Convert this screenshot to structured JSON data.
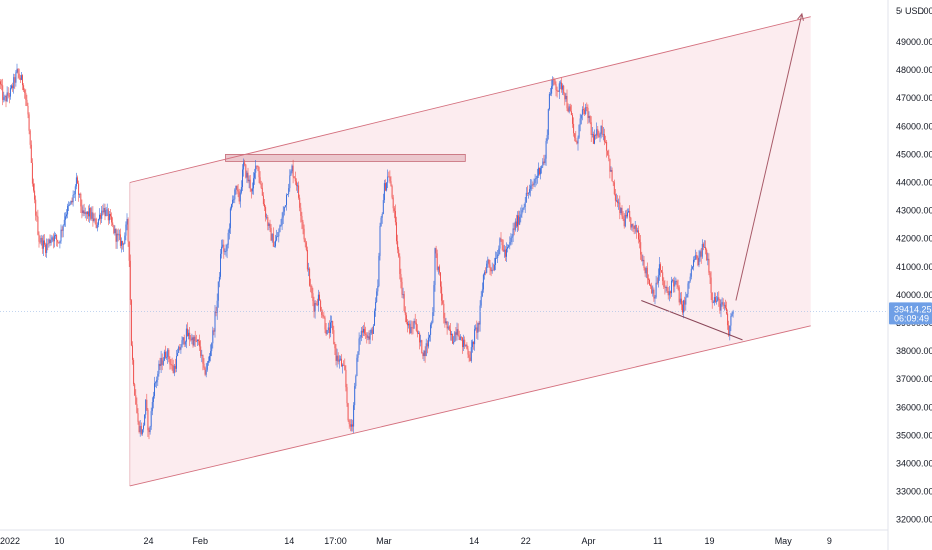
{
  "chart_data": {
    "type": "candlestick",
    "currency": "USD",
    "y_axis": {
      "min": 31500,
      "max": 50300,
      "ticks": [
        32000,
        33000,
        34000,
        35000,
        36000,
        37000,
        38000,
        39000,
        40000,
        41000,
        42000,
        43000,
        44000,
        45000,
        46000,
        47000,
        48000,
        49000
      ],
      "tick_labels": [
        "32000.00",
        "33000.00",
        "34000.00",
        "35000.00",
        "36000.00",
        "37000.00",
        "38000.00",
        "39000.00",
        "40000.00",
        "41000.00",
        "42000.00",
        "43000.00",
        "44000.00",
        "45000.00",
        "46000.00",
        "47000.00",
        "48000.00",
        "49000.00"
      ],
      "top_label": "50000.00"
    },
    "x_axis": {
      "note": "x in bar index (4-hour bars from start of chart)",
      "ticks": [
        {
          "x": 0,
          "label": "2022"
        },
        {
          "x": 54,
          "label": "10"
        },
        {
          "x": 135,
          "label": "24"
        },
        {
          "x": 182,
          "label": "Feb"
        },
        {
          "x": 263,
          "label": "14"
        },
        {
          "x": 305,
          "label": "17:00"
        },
        {
          "x": 349,
          "label": "Mar"
        },
        {
          "x": 431,
          "label": "14"
        },
        {
          "x": 478,
          "label": "22"
        },
        {
          "x": 535,
          "label": "Apr"
        },
        {
          "x": 598,
          "label": "11"
        },
        {
          "x": 645,
          "label": "19"
        },
        {
          "x": 712,
          "label": "May"
        },
        {
          "x": 754,
          "label": "9"
        }
      ]
    },
    "current_price": {
      "label": "39414.25",
      "countdown": "06:09:49",
      "value": 39414.25
    },
    "path": [
      [
        0,
        47600
      ],
      [
        4,
        46900
      ],
      [
        10,
        47200
      ],
      [
        16,
        47900
      ],
      [
        22,
        47500
      ],
      [
        26,
        46400
      ],
      [
        30,
        43900
      ],
      [
        36,
        42000
      ],
      [
        42,
        41700
      ],
      [
        48,
        42100
      ],
      [
        54,
        41900
      ],
      [
        60,
        42900
      ],
      [
        66,
        43300
      ],
      [
        70,
        44000
      ],
      [
        76,
        42800
      ],
      [
        82,
        42900
      ],
      [
        88,
        42500
      ],
      [
        94,
        43100
      ],
      [
        100,
        42700
      ],
      [
        106,
        42100
      ],
      [
        112,
        41800
      ],
      [
        116,
        42500
      ],
      [
        118,
        41400
      ],
      [
        120,
        38300
      ],
      [
        122,
        37000
      ],
      [
        126,
        35400
      ],
      [
        130,
        35100
      ],
      [
        133,
        36100
      ],
      [
        136,
        35000
      ],
      [
        140,
        36600
      ],
      [
        146,
        37500
      ],
      [
        152,
        38000
      ],
      [
        158,
        37300
      ],
      [
        164,
        38100
      ],
      [
        170,
        38600
      ],
      [
        176,
        38400
      ],
      [
        182,
        38200
      ],
      [
        186,
        37200
      ],
      [
        190,
        37600
      ],
      [
        194,
        38600
      ],
      [
        198,
        39800
      ],
      [
        202,
        41800
      ],
      [
        206,
        41400
      ],
      [
        210,
        42900
      ],
      [
        214,
        43800
      ],
      [
        218,
        43400
      ],
      [
        222,
        44600
      ],
      [
        226,
        44100
      ],
      [
        230,
        43700
      ],
      [
        234,
        44800
      ],
      [
        238,
        43800
      ],
      [
        242,
        42900
      ],
      [
        246,
        42200
      ],
      [
        250,
        41800
      ],
      [
        254,
        42200
      ],
      [
        258,
        42900
      ],
      [
        262,
        43800
      ],
      [
        266,
        44500
      ],
      [
        270,
        44000
      ],
      [
        274,
        43000
      ],
      [
        278,
        41800
      ],
      [
        282,
        40400
      ],
      [
        286,
        39600
      ],
      [
        290,
        39900
      ],
      [
        294,
        39300
      ],
      [
        298,
        38600
      ],
      [
        302,
        38900
      ],
      [
        306,
        37800
      ],
      [
        310,
        37600
      ],
      [
        314,
        37200
      ],
      [
        318,
        35200
      ],
      [
        321,
        35500
      ],
      [
        324,
        37300
      ],
      [
        328,
        38600
      ],
      [
        332,
        38800
      ],
      [
        336,
        38400
      ],
      [
        340,
        38900
      ],
      [
        344,
        40300
      ],
      [
        346,
        42300
      ],
      [
        350,
        43800
      ],
      [
        354,
        44300
      ],
      [
        358,
        43200
      ],
      [
        362,
        41600
      ],
      [
        366,
        40200
      ],
      [
        370,
        39000
      ],
      [
        374,
        38700
      ],
      [
        378,
        39100
      ],
      [
        382,
        38300
      ],
      [
        386,
        37900
      ],
      [
        390,
        38400
      ],
      [
        394,
        39400
      ],
      [
        396,
        41600
      ],
      [
        400,
        40600
      ],
      [
        404,
        39200
      ],
      [
        408,
        38700
      ],
      [
        412,
        38400
      ],
      [
        416,
        38900
      ],
      [
        420,
        38300
      ],
      [
        424,
        38200
      ],
      [
        428,
        37800
      ],
      [
        432,
        38600
      ],
      [
        436,
        39000
      ],
      [
        440,
        40700
      ],
      [
        444,
        41200
      ],
      [
        448,
        40900
      ],
      [
        452,
        41500
      ],
      [
        456,
        41900
      ],
      [
        460,
        41400
      ],
      [
        464,
        41800
      ],
      [
        468,
        42400
      ],
      [
        472,
        42700
      ],
      [
        476,
        43200
      ],
      [
        480,
        43600
      ],
      [
        484,
        43800
      ],
      [
        488,
        44200
      ],
      [
        492,
        44600
      ],
      [
        496,
        44800
      ],
      [
        498,
        45900
      ],
      [
        500,
        47200
      ],
      [
        504,
        47600
      ],
      [
        508,
        47300
      ],
      [
        512,
        47500
      ],
      [
        516,
        46800
      ],
      [
        520,
        46300
      ],
      [
        524,
        45300
      ],
      [
        528,
        46200
      ],
      [
        532,
        46600
      ],
      [
        536,
        46300
      ],
      [
        540,
        45400
      ],
      [
        544,
        45800
      ],
      [
        548,
        45900
      ],
      [
        552,
        45300
      ],
      [
        556,
        44300
      ],
      [
        560,
        43400
      ],
      [
        564,
        43000
      ],
      [
        568,
        42600
      ],
      [
        572,
        42800
      ],
      [
        576,
        42300
      ],
      [
        580,
        42300
      ],
      [
        584,
        41400
      ],
      [
        588,
        40800
      ],
      [
        592,
        40300
      ],
      [
        596,
        40000
      ],
      [
        600,
        41000
      ],
      [
        604,
        40300
      ],
      [
        608,
        40000
      ],
      [
        612,
        40500
      ],
      [
        616,
        40300
      ],
      [
        620,
        39500
      ],
      [
        624,
        39800
      ],
      [
        628,
        40700
      ],
      [
        632,
        41300
      ],
      [
        636,
        41200
      ],
      [
        640,
        41800
      ],
      [
        644,
        41300
      ],
      [
        648,
        39900
      ],
      [
        652,
        39800
      ],
      [
        656,
        39600
      ],
      [
        660,
        39500
      ],
      [
        663,
        38600
      ],
      [
        666,
        39400
      ]
    ],
    "annotations": {
      "channel_upper": {
        "from": [
          118,
          44000
        ],
        "to": [
          737,
          49900
        ]
      },
      "channel_lower": {
        "from": [
          118,
          33200
        ],
        "to": [
          737,
          38900
        ]
      },
      "resistance_zone": {
        "x0": 205,
        "x1": 423,
        "y0": 44750,
        "y1": 45000
      },
      "support_line": {
        "from": [
          583,
          39800
        ],
        "to": [
          675,
          38400
        ]
      },
      "projection_arrow": {
        "from": [
          669,
          39800
        ],
        "to": [
          729,
          50000
        ]
      }
    },
    "colors": {
      "up": "#3b6fdc",
      "down": "#ef5350",
      "channel_line": "#d4707e",
      "channel_fill": "#fcecef",
      "zone_fill": "#ebc7cd",
      "zone_stroke": "#c56875",
      "arrow": "#a85a68",
      "price_label_bg": "#6f9fe6"
    }
  }
}
